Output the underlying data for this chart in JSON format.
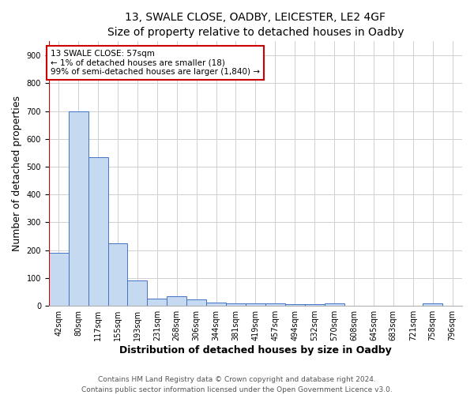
{
  "title": "13, SWALE CLOSE, OADBY, LEICESTER, LE2 4GF",
  "subtitle": "Size of property relative to detached houses in Oadby",
  "xlabel": "Distribution of detached houses by size in Oadby",
  "ylabel": "Number of detached properties",
  "categories": [
    "42sqm",
    "80sqm",
    "117sqm",
    "155sqm",
    "193sqm",
    "231sqm",
    "268sqm",
    "306sqm",
    "344sqm",
    "381sqm",
    "419sqm",
    "457sqm",
    "494sqm",
    "532sqm",
    "570sqm",
    "608sqm",
    "645sqm",
    "683sqm",
    "721sqm",
    "758sqm",
    "796sqm"
  ],
  "values": [
    190,
    700,
    535,
    225,
    90,
    27,
    36,
    22,
    12,
    8,
    10,
    8,
    7,
    5,
    8,
    0,
    0,
    0,
    0,
    8,
    0
  ],
  "bar_color": "#c5d9f1",
  "bar_edge_color": "#4472c4",
  "annotation_text_line1": "13 SWALE CLOSE: 57sqm",
  "annotation_text_line2": "← 1% of detached houses are smaller (18)",
  "annotation_text_line3": "99% of semi-detached houses are larger (1,840) →",
  "annotation_box_color": "#ffffff",
  "annotation_box_edge": "#cc0000",
  "marker_line_color": "#cc0000",
  "ylim": [
    0,
    950
  ],
  "yticks": [
    0,
    100,
    200,
    300,
    400,
    500,
    600,
    700,
    800,
    900
  ],
  "footer_line1": "Contains HM Land Registry data © Crown copyright and database right 2024.",
  "footer_line2": "Contains public sector information licensed under the Open Government Licence v3.0.",
  "bg_color": "#ffffff",
  "grid_color": "#d0d0d0",
  "title_fontsize": 10,
  "axis_label_fontsize": 9,
  "tick_fontsize": 7,
  "footer_fontsize": 6.5,
  "annotation_fontsize": 7.5
}
